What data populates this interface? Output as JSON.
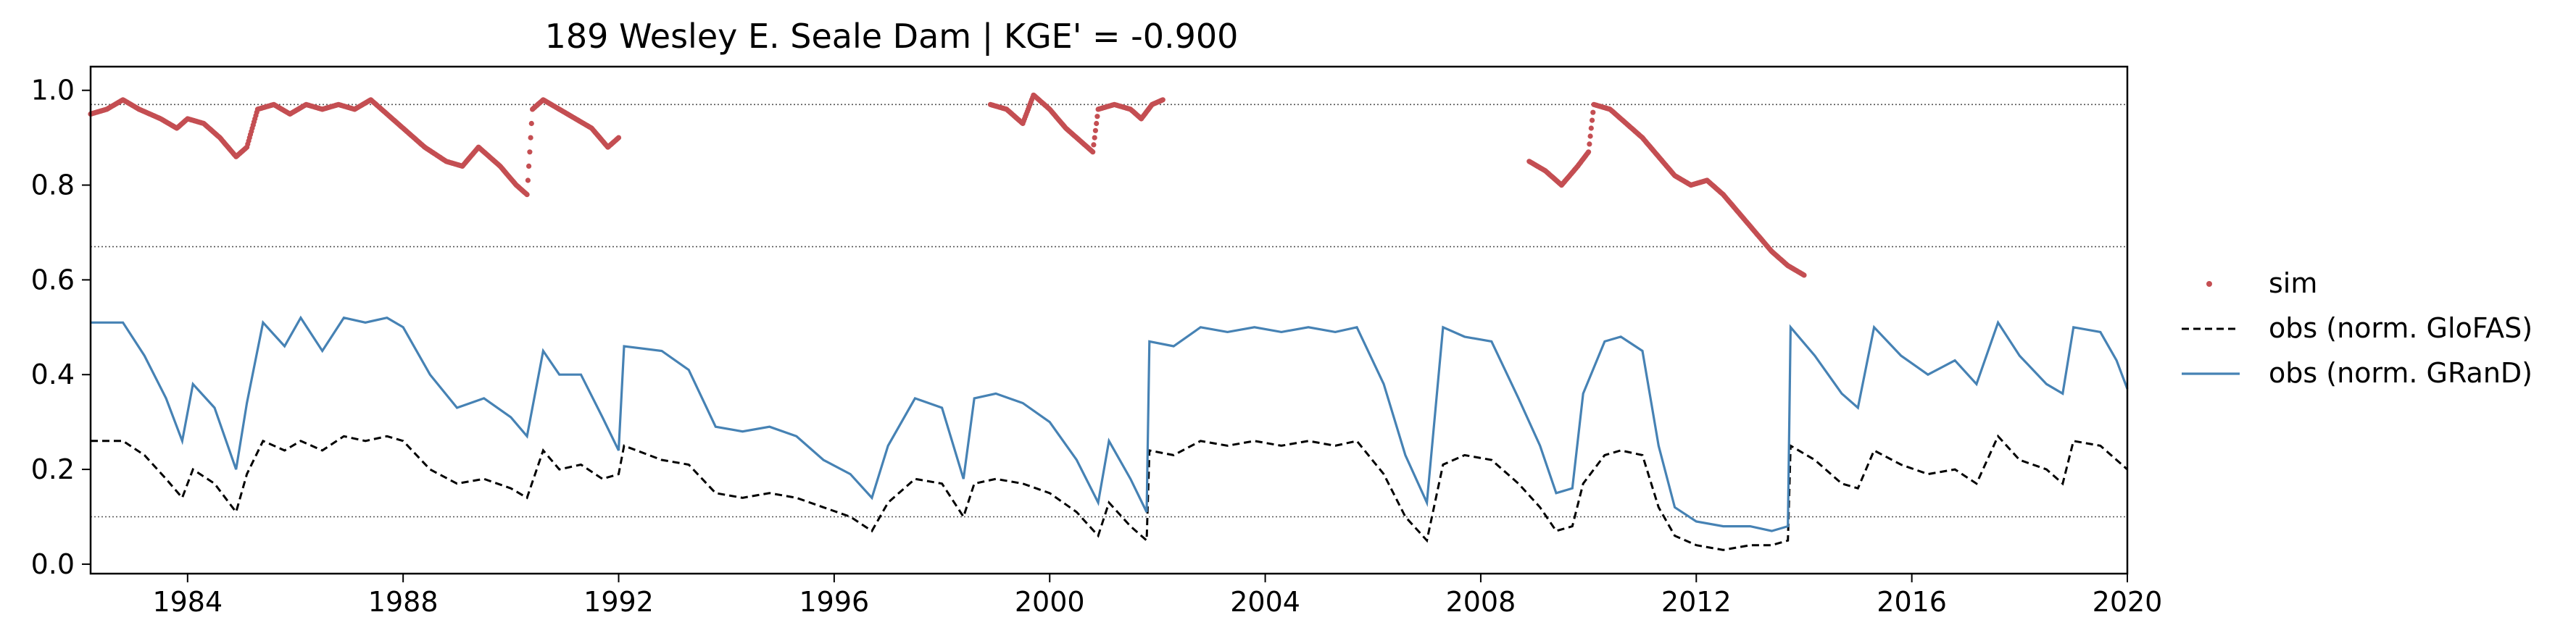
{
  "chart_data": {
    "type": "line",
    "title": "189  Wesley E. Seale Dam | KGE' = -0.900",
    "xlabel": "",
    "ylabel": "",
    "xlim": [
      1982.2,
      2020.0
    ],
    "ylim": [
      -0.02,
      1.05
    ],
    "x_ticks": [
      1984,
      1988,
      1992,
      1996,
      2000,
      2004,
      2008,
      2012,
      2016,
      2020
    ],
    "x_tick_labels": [
      "1984",
      "1988",
      "1992",
      "1996",
      "2000",
      "2004",
      "2008",
      "2012",
      "2016",
      "2020"
    ],
    "y_ticks": [
      0.0,
      0.2,
      0.4,
      0.6,
      0.8,
      1.0
    ],
    "y_tick_labels": [
      "0.0",
      "0.2",
      "0.4",
      "0.6",
      "0.8",
      "1.0"
    ],
    "reference_lines": [
      0.97,
      0.67,
      0.1
    ],
    "grid": false,
    "legend_position": "right-outside",
    "series": [
      {
        "name": "sim",
        "style": "scatter",
        "color": "#c44e52",
        "segments": [
          [
            [
              1982.2,
              0.95
            ],
            [
              1982.5,
              0.96
            ],
            [
              1982.8,
              0.98
            ],
            [
              1983.1,
              0.96
            ],
            [
              1983.5,
              0.94
            ],
            [
              1983.8,
              0.92
            ],
            [
              1984.0,
              0.94
            ],
            [
              1984.3,
              0.93
            ],
            [
              1984.6,
              0.9
            ],
            [
              1984.9,
              0.86
            ],
            [
              1985.1,
              0.88
            ],
            [
              1985.3,
              0.96
            ],
            [
              1985.6,
              0.97
            ],
            [
              1985.9,
              0.95
            ],
            [
              1986.2,
              0.97
            ],
            [
              1986.5,
              0.96
            ],
            [
              1986.8,
              0.97
            ],
            [
              1987.1,
              0.96
            ],
            [
              1987.4,
              0.98
            ],
            [
              1987.7,
              0.95
            ],
            [
              1988.0,
              0.92
            ],
            [
              1988.4,
              0.88
            ],
            [
              1988.8,
              0.85
            ],
            [
              1989.1,
              0.84
            ],
            [
              1989.4,
              0.88
            ],
            [
              1989.8,
              0.84
            ],
            [
              1990.1,
              0.8
            ],
            [
              1990.3,
              0.78
            ],
            [
              1990.4,
              0.96
            ],
            [
              1990.6,
              0.98
            ],
            [
              1990.9,
              0.96
            ],
            [
              1991.2,
              0.94
            ],
            [
              1991.5,
              0.92
            ],
            [
              1991.8,
              0.88
            ],
            [
              1992.0,
              0.9
            ]
          ],
          [
            [
              1998.9,
              0.97
            ],
            [
              1999.2,
              0.96
            ],
            [
              1999.5,
              0.93
            ],
            [
              1999.7,
              0.99
            ],
            [
              2000.0,
              0.96
            ],
            [
              2000.3,
              0.92
            ],
            [
              2000.6,
              0.89
            ],
            [
              2000.8,
              0.87
            ],
            [
              2000.9,
              0.96
            ],
            [
              2001.2,
              0.97
            ],
            [
              2001.5,
              0.96
            ],
            [
              2001.7,
              0.94
            ],
            [
              2001.9,
              0.97
            ],
            [
              2002.1,
              0.98
            ]
          ],
          [
            [
              2008.9,
              0.85
            ],
            [
              2009.2,
              0.83
            ],
            [
              2009.5,
              0.8
            ],
            [
              2009.8,
              0.84
            ],
            [
              2010.0,
              0.87
            ],
            [
              2010.1,
              0.97
            ],
            [
              2010.4,
              0.96
            ],
            [
              2010.7,
              0.93
            ],
            [
              2011.0,
              0.9
            ],
            [
              2011.3,
              0.86
            ],
            [
              2011.6,
              0.82
            ],
            [
              2011.9,
              0.8
            ],
            [
              2012.2,
              0.81
            ],
            [
              2012.5,
              0.78
            ],
            [
              2012.8,
              0.74
            ],
            [
              2013.1,
              0.7
            ],
            [
              2013.4,
              0.66
            ],
            [
              2013.7,
              0.63
            ],
            [
              2014.0,
              0.61
            ]
          ]
        ]
      },
      {
        "name": "obs (norm. GloFAS)",
        "style": "dashed",
        "color": "#000000",
        "points": [
          [
            1982.2,
            0.26
          ],
          [
            1982.8,
            0.26
          ],
          [
            1983.2,
            0.23
          ],
          [
            1983.6,
            0.18
          ],
          [
            1983.9,
            0.14
          ],
          [
            1984.1,
            0.2
          ],
          [
            1984.5,
            0.17
          ],
          [
            1984.9,
            0.11
          ],
          [
            1985.1,
            0.19
          ],
          [
            1985.4,
            0.26
          ],
          [
            1985.8,
            0.24
          ],
          [
            1986.1,
            0.26
          ],
          [
            1986.5,
            0.24
          ],
          [
            1986.9,
            0.27
          ],
          [
            1987.3,
            0.26
          ],
          [
            1987.7,
            0.27
          ],
          [
            1988.0,
            0.26
          ],
          [
            1988.5,
            0.2
          ],
          [
            1989.0,
            0.17
          ],
          [
            1989.5,
            0.18
          ],
          [
            1990.0,
            0.16
          ],
          [
            1990.3,
            0.14
          ],
          [
            1990.6,
            0.24
          ],
          [
            1990.9,
            0.2
          ],
          [
            1991.3,
            0.21
          ],
          [
            1991.7,
            0.18
          ],
          [
            1992.0,
            0.19
          ],
          [
            1992.1,
            0.25
          ],
          [
            1992.8,
            0.22
          ],
          [
            1993.3,
            0.21
          ],
          [
            1993.8,
            0.15
          ],
          [
            1994.3,
            0.14
          ],
          [
            1994.8,
            0.15
          ],
          [
            1995.3,
            0.14
          ],
          [
            1995.8,
            0.12
          ],
          [
            1996.3,
            0.1
          ],
          [
            1996.7,
            0.07
          ],
          [
            1997.0,
            0.13
          ],
          [
            1997.5,
            0.18
          ],
          [
            1998.0,
            0.17
          ],
          [
            1998.4,
            0.1
          ],
          [
            1998.6,
            0.17
          ],
          [
            1999.0,
            0.18
          ],
          [
            1999.5,
            0.17
          ],
          [
            2000.0,
            0.15
          ],
          [
            2000.5,
            0.11
          ],
          [
            2000.9,
            0.06
          ],
          [
            2001.1,
            0.13
          ],
          [
            2001.5,
            0.08
          ],
          [
            2001.8,
            0.05
          ],
          [
            2001.85,
            0.24
          ],
          [
            2002.3,
            0.23
          ],
          [
            2002.8,
            0.26
          ],
          [
            2003.3,
            0.25
          ],
          [
            2003.8,
            0.26
          ],
          [
            2004.3,
            0.25
          ],
          [
            2004.8,
            0.26
          ],
          [
            2005.3,
            0.25
          ],
          [
            2005.7,
            0.26
          ],
          [
            2006.2,
            0.19
          ],
          [
            2006.6,
            0.1
          ],
          [
            2007.0,
            0.05
          ],
          [
            2007.3,
            0.21
          ],
          [
            2007.7,
            0.23
          ],
          [
            2008.2,
            0.22
          ],
          [
            2008.7,
            0.17
          ],
          [
            2009.1,
            0.12
          ],
          [
            2009.4,
            0.07
          ],
          [
            2009.7,
            0.08
          ],
          [
            2009.9,
            0.17
          ],
          [
            2010.3,
            0.23
          ],
          [
            2010.6,
            0.24
          ],
          [
            2011.0,
            0.23
          ],
          [
            2011.3,
            0.12
          ],
          [
            2011.6,
            0.06
          ],
          [
            2012.0,
            0.04
          ],
          [
            2012.5,
            0.03
          ],
          [
            2013.0,
            0.04
          ],
          [
            2013.4,
            0.04
          ],
          [
            2013.7,
            0.05
          ],
          [
            2013.75,
            0.25
          ],
          [
            2014.2,
            0.22
          ],
          [
            2014.7,
            0.17
          ],
          [
            2015.0,
            0.16
          ],
          [
            2015.3,
            0.24
          ],
          [
            2015.8,
            0.21
          ],
          [
            2016.3,
            0.19
          ],
          [
            2016.8,
            0.2
          ],
          [
            2017.2,
            0.17
          ],
          [
            2017.6,
            0.27
          ],
          [
            2018.0,
            0.22
          ],
          [
            2018.5,
            0.2
          ],
          [
            2018.8,
            0.17
          ],
          [
            2019.0,
            0.26
          ],
          [
            2019.5,
            0.25
          ],
          [
            2019.8,
            0.22
          ],
          [
            2020.0,
            0.2
          ]
        ]
      },
      {
        "name": "obs (norm. GRanD)",
        "style": "solid",
        "color": "#4682b4",
        "points": [
          [
            1982.2,
            0.51
          ],
          [
            1982.8,
            0.51
          ],
          [
            1983.2,
            0.44
          ],
          [
            1983.6,
            0.35
          ],
          [
            1983.9,
            0.26
          ],
          [
            1984.1,
            0.38
          ],
          [
            1984.5,
            0.33
          ],
          [
            1984.9,
            0.2
          ],
          [
            1985.1,
            0.34
          ],
          [
            1985.4,
            0.51
          ],
          [
            1985.8,
            0.46
          ],
          [
            1986.1,
            0.52
          ],
          [
            1986.5,
            0.45
          ],
          [
            1986.9,
            0.52
          ],
          [
            1987.3,
            0.51
          ],
          [
            1987.7,
            0.52
          ],
          [
            1988.0,
            0.5
          ],
          [
            1988.5,
            0.4
          ],
          [
            1989.0,
            0.33
          ],
          [
            1989.5,
            0.35
          ],
          [
            1990.0,
            0.31
          ],
          [
            1990.3,
            0.27
          ],
          [
            1990.6,
            0.45
          ],
          [
            1990.9,
            0.4
          ],
          [
            1991.3,
            0.4
          ],
          [
            1991.7,
            0.31
          ],
          [
            1992.0,
            0.24
          ],
          [
            1992.1,
            0.46
          ],
          [
            1992.8,
            0.45
          ],
          [
            1993.3,
            0.41
          ],
          [
            1993.8,
            0.29
          ],
          [
            1994.3,
            0.28
          ],
          [
            1994.8,
            0.29
          ],
          [
            1995.3,
            0.27
          ],
          [
            1995.8,
            0.22
          ],
          [
            1996.3,
            0.19
          ],
          [
            1996.7,
            0.14
          ],
          [
            1997.0,
            0.25
          ],
          [
            1997.5,
            0.35
          ],
          [
            1998.0,
            0.33
          ],
          [
            1998.4,
            0.18
          ],
          [
            1998.6,
            0.35
          ],
          [
            1999.0,
            0.36
          ],
          [
            1999.5,
            0.34
          ],
          [
            2000.0,
            0.3
          ],
          [
            2000.5,
            0.22
          ],
          [
            2000.9,
            0.13
          ],
          [
            2001.1,
            0.26
          ],
          [
            2001.5,
            0.18
          ],
          [
            2001.8,
            0.11
          ],
          [
            2001.85,
            0.47
          ],
          [
            2002.3,
            0.46
          ],
          [
            2002.8,
            0.5
          ],
          [
            2003.3,
            0.49
          ],
          [
            2003.8,
            0.5
          ],
          [
            2004.3,
            0.49
          ],
          [
            2004.8,
            0.5
          ],
          [
            2005.3,
            0.49
          ],
          [
            2005.7,
            0.5
          ],
          [
            2006.2,
            0.38
          ],
          [
            2006.6,
            0.23
          ],
          [
            2007.0,
            0.13
          ],
          [
            2007.3,
            0.5
          ],
          [
            2007.7,
            0.48
          ],
          [
            2008.2,
            0.47
          ],
          [
            2008.7,
            0.35
          ],
          [
            2009.1,
            0.25
          ],
          [
            2009.4,
            0.15
          ],
          [
            2009.7,
            0.16
          ],
          [
            2009.9,
            0.36
          ],
          [
            2010.3,
            0.47
          ],
          [
            2010.6,
            0.48
          ],
          [
            2011.0,
            0.45
          ],
          [
            2011.3,
            0.25
          ],
          [
            2011.6,
            0.12
          ],
          [
            2012.0,
            0.09
          ],
          [
            2012.5,
            0.08
          ],
          [
            2013.0,
            0.08
          ],
          [
            2013.4,
            0.07
          ],
          [
            2013.7,
            0.08
          ],
          [
            2013.75,
            0.5
          ],
          [
            2014.2,
            0.44
          ],
          [
            2014.7,
            0.36
          ],
          [
            2015.0,
            0.33
          ],
          [
            2015.3,
            0.5
          ],
          [
            2015.8,
            0.44
          ],
          [
            2016.3,
            0.4
          ],
          [
            2016.8,
            0.43
          ],
          [
            2017.2,
            0.38
          ],
          [
            2017.6,
            0.51
          ],
          [
            2018.0,
            0.44
          ],
          [
            2018.5,
            0.38
          ],
          [
            2018.8,
            0.36
          ],
          [
            2019.0,
            0.5
          ],
          [
            2019.5,
            0.49
          ],
          [
            2019.8,
            0.43
          ],
          [
            2020.0,
            0.37
          ]
        ]
      }
    ]
  }
}
